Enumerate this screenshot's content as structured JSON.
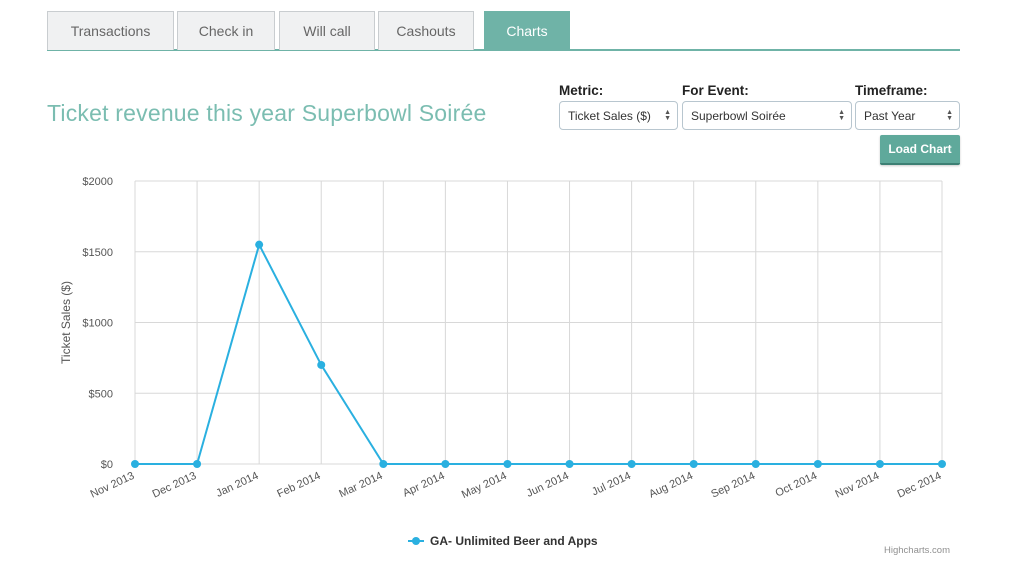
{
  "tabs": [
    {
      "label": "Transactions",
      "active": false
    },
    {
      "label": "Check in",
      "active": false
    },
    {
      "label": "Will call",
      "active": false
    },
    {
      "label": "Cashouts",
      "active": false
    },
    {
      "label": "Charts",
      "active": true
    }
  ],
  "page_title": "Ticket revenue this year Superbowl Soirée",
  "controls": {
    "metric": {
      "label": "Metric:",
      "value": "Ticket Sales ($)"
    },
    "event": {
      "label": "For Event:",
      "value": "Superbowl Soirée"
    },
    "timeframe": {
      "label": "Timeframe:",
      "value": "Past Year"
    },
    "load_button": "Load Chart"
  },
  "colors": {
    "accent": "#6fb3a7",
    "series": "#2ab0e0"
  },
  "chart_data": {
    "type": "line",
    "categories": [
      "Nov 2013",
      "Dec 2013",
      "Jan 2014",
      "Feb 2014",
      "Mar 2014",
      "Apr 2014",
      "May 2014",
      "Jun 2014",
      "Jul 2014",
      "Aug 2014",
      "Sep 2014",
      "Oct 2014",
      "Nov 2014",
      "Dec 2014"
    ],
    "series": [
      {
        "name": "GA- Unlimited Beer and Apps",
        "values": [
          0,
          0,
          1550,
          700,
          0,
          0,
          0,
          0,
          0,
          0,
          0,
          0,
          0,
          0
        ]
      }
    ],
    "ylabel": "Ticket Sales ($)",
    "ylim": [
      0,
      2000
    ],
    "yticks": [
      0,
      500,
      1000,
      1500,
      2000
    ],
    "ytick_labels": [
      "$0",
      "$500",
      "$1000",
      "$1500",
      "$2000"
    ],
    "grid": true,
    "legend_position": "bottom-center"
  },
  "credits": "Highcharts.com"
}
